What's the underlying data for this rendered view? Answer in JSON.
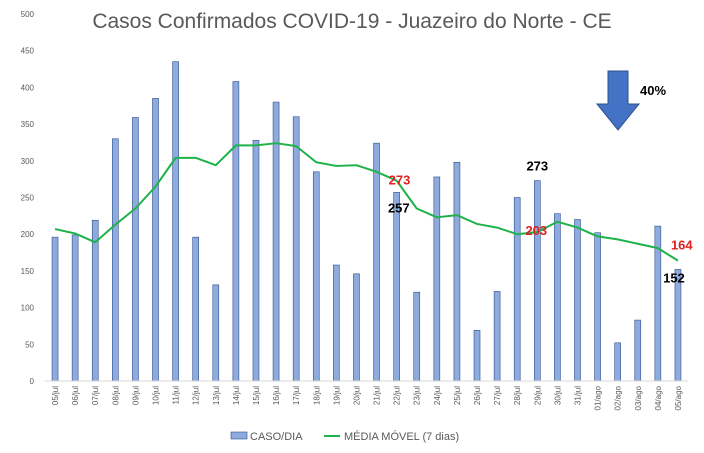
{
  "chart_data": {
    "type": "bar",
    "title": "Casos Confirmados COVID-19 - Juazeiro do Norte - CE",
    "categories": [
      "05/jul",
      "06/jul",
      "07/jul",
      "08/jul",
      "09/jul",
      "10/jul",
      "11/jul",
      "12/jul",
      "13/jul",
      "14/jul",
      "15/jul",
      "16/jul",
      "17/jul",
      "18/jul",
      "19/jul",
      "20/jul",
      "21/jul",
      "22/jul",
      "23/jul",
      "24/jul",
      "25/jul",
      "26/jul",
      "27/jul",
      "28/jul",
      "29/jul",
      "30/jul",
      "31/jul",
      "01/ago",
      "02/ago",
      "03/ago",
      "04/ago",
      "05/ago"
    ],
    "series": [
      {
        "name": "CASO/DIA",
        "type": "bar",
        "color": "#8faadc",
        "values": [
          196,
          199,
          219,
          330,
          359,
          385,
          435,
          196,
          131,
          408,
          328,
          380,
          360,
          285,
          158,
          146,
          324,
          257,
          121,
          278,
          298,
          69,
          122,
          250,
          273,
          228,
          220,
          202,
          52,
          83,
          211,
          152
        ]
      },
      {
        "name": "MÉDIA MÓVEL (7 dias)",
        "type": "line",
        "color": "#1db34a",
        "values": [
          207,
          201,
          189,
          213,
          235,
          265,
          304,
          304,
          294,
          321,
          321,
          324,
          320,
          298,
          293,
          294,
          285,
          273,
          235,
          223,
          226,
          214,
          209,
          200,
          203,
          217,
          209,
          197,
          193,
          187,
          181,
          164
        ]
      }
    ],
    "ylim": [
      0,
      500
    ],
    "yticks": [
      0,
      50,
      100,
      150,
      200,
      250,
      300,
      350,
      400,
      450,
      500
    ],
    "grid": false,
    "legend": "bottom",
    "annotations": [
      {
        "text": "273",
        "x": "22/jul",
        "y": 273,
        "color": "#e02020"
      },
      {
        "text": "257",
        "x": "22/jul",
        "y": 257,
        "color": "#000000"
      },
      {
        "text": "273",
        "x": "29/jul",
        "y": 273,
        "color": "#000000"
      },
      {
        "text": "203",
        "x": "29/jul",
        "y": 203,
        "color": "#e02020"
      },
      {
        "text": "164",
        "x": "05/ago",
        "y": 164,
        "color": "#e02020"
      },
      {
        "text": "152",
        "x": "05/ago",
        "y": 152,
        "color": "#000000"
      },
      {
        "text": "40%",
        "color": "#000000"
      }
    ],
    "arrow": {
      "direction": "down",
      "color": "#4472c4"
    }
  }
}
